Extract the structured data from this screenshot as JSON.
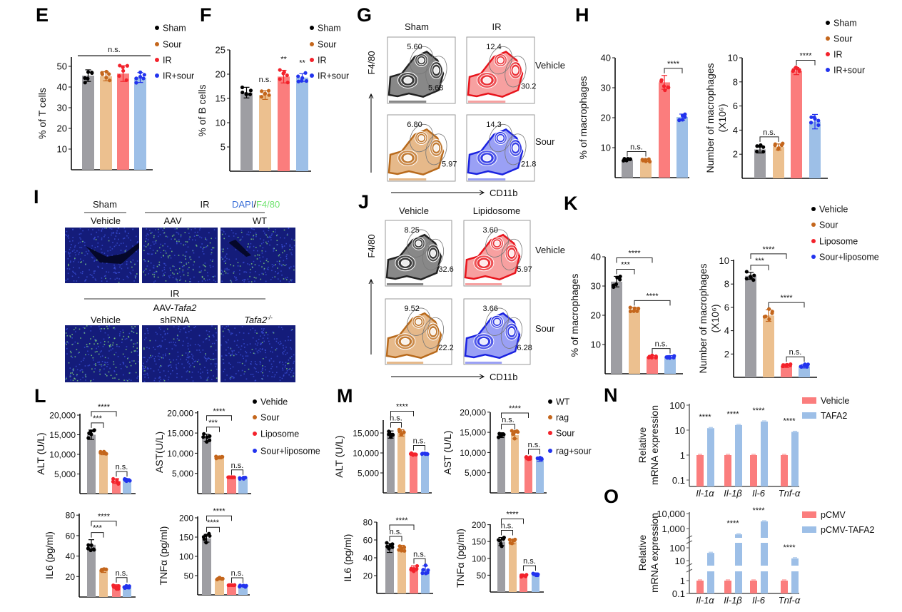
{
  "panel_letters": {
    "E": "E",
    "F": "F",
    "G": "G",
    "H": "H",
    "I": "I",
    "J": "J",
    "K": "K",
    "L": "L",
    "M": "M",
    "N": "N",
    "O": "O"
  },
  "palette": {
    "bar_fills": [
      "#9e9ea3",
      "#ecc08f",
      "#fb7d7d",
      "#9dbfe7"
    ],
    "dot_colors": [
      "#000000",
      "#c4661c",
      "#f3222b",
      "#2233ee"
    ],
    "pair_fills": [
      "#fb7d7d",
      "#9dbfe7"
    ]
  },
  "legends": {
    "E": [
      "Sham",
      "Sour",
      "IR",
      "IR+sour"
    ],
    "F": [
      "Sham",
      "Sour",
      "IR",
      "IR+sour"
    ],
    "H": [
      "Sham",
      "Sour",
      "IR",
      "IR+sour"
    ],
    "K": [
      "Vehicle",
      "Sour",
      "Liposome",
      "Sour+liposome"
    ],
    "L": [
      "Vehide",
      "Sour",
      "Liposome",
      "Sour+liposome"
    ],
    "M": [
      "WT",
      "rag",
      "Sour",
      "rag+sour"
    ],
    "N": [
      "Vehicle",
      " TAFA2"
    ],
    "O": [
      "pCMV",
      "pCMV-TAFA2"
    ]
  },
  "flow": {
    "G": {
      "columns": [
        "Sham",
        "IR"
      ],
      "rows": [
        "Vehicle",
        "Sour"
      ],
      "gates": [
        [
          "5.60",
          "5.68"
        ],
        [
          "12.4",
          "30.2"
        ],
        [
          "6.80",
          "5.97"
        ],
        [
          "14.3",
          "21.8"
        ]
      ],
      "y_axis": "F4/80",
      "x_axis": "CD11b"
    },
    "J": {
      "columns": [
        "Vehicle",
        "Lipidosome"
      ],
      "rows": [
        "Vehicle",
        "Sour"
      ],
      "gates": [
        [
          "8.25",
          "32.6"
        ],
        [
          "3.60",
          "5.97"
        ],
        [
          "9.52",
          "22.2"
        ],
        [
          "3.66",
          "6.28"
        ]
      ],
      "y_axis": "F4/80",
      "x_axis": "CD11b"
    }
  },
  "imaging": {
    "top": {
      "group1": "Sham",
      "group2": "IR",
      "stain_a": "DAPI",
      "stain_sep": "/",
      "stain_b": "F4/80",
      "labels": [
        "Vehicle",
        "AAV",
        "WT"
      ]
    },
    "bottom": {
      "group": "IR",
      "sub_prefix": "AAV-",
      "sub_gene": "Tafa2",
      "labels": [
        "Vehicle",
        "shRNA",
        "Tafa2"
      ],
      "ko_sup": "-/-"
    }
  },
  "chart_data": [
    {
      "id": "E",
      "type": "bar",
      "ylabel": "% of T cells",
      "ylim": [
        0,
        55
      ],
      "yticks": [
        10,
        20,
        30,
        40,
        50
      ],
      "categories": [
        "Sham",
        "Sour",
        "IR",
        "IR+sour"
      ],
      "values": [
        45.5,
        45.2,
        46.5,
        44.6
      ],
      "errors": [
        2.8,
        2.2,
        3.8,
        2.4
      ],
      "annotations": [
        {
          "type": "line",
          "from": 0,
          "to": 3,
          "label": "n.s."
        }
      ]
    },
    {
      "id": "F",
      "type": "bar",
      "ylabel": "% of B cells",
      "ylim": [
        0,
        25
      ],
      "yticks": [
        5,
        10,
        15,
        20,
        25
      ],
      "categories": [
        "Sham",
        "Sour",
        "IR",
        "IR+sour"
      ],
      "values": [
        16.2,
        15.7,
        19.5,
        19.3
      ],
      "errors": [
        1.1,
        0.9,
        1.3,
        0.8
      ],
      "annotations": [
        {
          "from": 1,
          "to": 1,
          "label": "n.s."
        },
        {
          "from": 2,
          "to": 2,
          "label": "**"
        },
        {
          "from": 3,
          "to": 3,
          "label": "**"
        }
      ]
    },
    {
      "id": "H1",
      "type": "bar",
      "ylabel": "% of macrophages",
      "ylim": [
        0,
        40
      ],
      "yticks": [
        10,
        20,
        30,
        40
      ],
      "categories": [
        "Sham",
        "Sour",
        "IR",
        "IR+sour"
      ],
      "values": [
        6.0,
        5.8,
        31.8,
        20.2
      ],
      "errors": [
        0.3,
        0.4,
        2.3,
        1.0
      ],
      "annotations": [
        {
          "from": 0,
          "to": 1,
          "label": "n.s."
        },
        {
          "from": 2,
          "to": 3,
          "label": "****"
        }
      ]
    },
    {
      "id": "H2",
      "type": "bar",
      "ylabel": "Number of macrophages",
      "ylabel2": "(X10⁶)",
      "ylim": [
        0,
        10
      ],
      "yticks": [
        2,
        4,
        6,
        8,
        10
      ],
      "categories": [
        "Sham",
        "Sour",
        "IR",
        "IR+sour"
      ],
      "values": [
        2.4,
        2.6,
        8.9,
        4.7
      ],
      "errors": [
        0.3,
        0.25,
        0.3,
        0.6
      ],
      "annotations": [
        {
          "from": 0,
          "to": 1,
          "label": "n.s."
        },
        {
          "from": 2,
          "to": 3,
          "label": "****"
        }
      ]
    },
    {
      "id": "K1",
      "type": "bar",
      "ylabel": "% of macrophages",
      "ylim": [
        0,
        40
      ],
      "yticks": [
        10,
        20,
        30,
        40
      ],
      "categories": [
        "Vehicle",
        "Sour",
        "Liposome",
        "Sour+liposome"
      ],
      "values": [
        31.5,
        22.0,
        5.8,
        5.8
      ],
      "errors": [
        1.8,
        0.6,
        0.4,
        0.4
      ],
      "annotations": [
        {
          "from": 2,
          "to": 3,
          "label": "n.s."
        },
        {
          "from": 1,
          "to": 3,
          "label": "****"
        },
        {
          "from": 0,
          "to": 1,
          "label": "***"
        },
        {
          "from": 0,
          "to": 2,
          "label": "****"
        }
      ]
    },
    {
      "id": "K2",
      "type": "bar",
      "ylabel": "Number of macrophages",
      "ylabel2": "(X10⁶)",
      "ylim": [
        0,
        10
      ],
      "yticks": [
        2,
        4,
        6,
        8,
        10
      ],
      "categories": [
        "Vehicle",
        "Sour",
        "Liposome",
        "Sour+liposome"
      ],
      "values": [
        8.7,
        5.3,
        1.0,
        0.95
      ],
      "errors": [
        0.3,
        0.5,
        0.15,
        0.15
      ],
      "annotations": [
        {
          "from": 2,
          "to": 3,
          "label": "n.s."
        },
        {
          "from": 1,
          "to": 3,
          "label": "****"
        },
        {
          "from": 0,
          "to": 1,
          "label": "***"
        },
        {
          "from": 0,
          "to": 2,
          "label": "****"
        }
      ]
    },
    {
      "id": "L_ALT",
      "type": "bar",
      "ylabel": "ALT (U/L)",
      "ylim": [
        0,
        20000
      ],
      "yticks": [
        5000,
        10000,
        15000,
        20000
      ],
      "categories": [
        "Vehide",
        "Sour",
        "Liposome",
        "Sour+liposome"
      ],
      "values": [
        15000,
        10300,
        3200,
        3400
      ],
      "errors": [
        1200,
        400,
        600,
        300
      ],
      "annotations": [
        {
          "from": 2,
          "to": 3,
          "label": "n.s."
        },
        {
          "from": 0,
          "to": 1,
          "label": "***"
        },
        {
          "from": 0,
          "to": 2,
          "label": "****"
        }
      ]
    },
    {
      "id": "L_AST",
      "type": "bar",
      "ylabel": "AST(U/L)",
      "ylim": [
        0,
        20000
      ],
      "yticks": [
        5000,
        10000,
        15000,
        20000
      ],
      "categories": [
        "Vehide",
        "Sour",
        "Liposome",
        "Sour+liposome"
      ],
      "values": [
        13800,
        8900,
        3900,
        3800
      ],
      "errors": [
        900,
        300,
        200,
        150
      ],
      "annotations": [
        {
          "from": 2,
          "to": 3,
          "label": "n.s."
        },
        {
          "from": 0,
          "to": 1,
          "label": "***"
        },
        {
          "from": 0,
          "to": 2,
          "label": "****"
        }
      ]
    },
    {
      "id": "L_IL6",
      "type": "bar",
      "ylabel": "IL6 (pg/ml)",
      "ylim": [
        0,
        80
      ],
      "yticks": [
        20,
        40,
        60,
        80
      ],
      "categories": [
        "Vehide",
        "Sour",
        "Liposome",
        "Sour+liposome"
      ],
      "values": [
        51,
        26,
        10,
        10
      ],
      "errors": [
        5,
        2,
        2,
        1
      ],
      "annotations": [
        {
          "from": 2,
          "to": 3,
          "label": "n.s."
        },
        {
          "from": 0,
          "to": 1,
          "label": "***"
        },
        {
          "from": 0,
          "to": 2,
          "label": "****"
        }
      ]
    },
    {
      "id": "L_TNF",
      "type": "bar",
      "ylabel": "TNFα (pg/ml)",
      "ylim": [
        0,
        200
      ],
      "yticks": [
        50,
        100,
        150,
        200
      ],
      "categories": [
        "Vehide",
        "Sour",
        "Liposome",
        "Sour+liposome"
      ],
      "values": [
        147,
        42,
        24,
        23
      ],
      "errors": [
        10,
        3,
        2,
        2
      ],
      "annotations": [
        {
          "from": 2,
          "to": 3,
          "label": "n.s."
        },
        {
          "from": 0,
          "to": 1,
          "label": "****"
        },
        {
          "from": 0,
          "to": 2,
          "label": "****"
        }
      ]
    },
    {
      "id": "M_ALT",
      "type": "bar",
      "ylabel": "ALT (U/L)",
      "ylim": [
        0,
        18000
      ],
      "yticks": [
        5000,
        10000,
        15000
      ],
      "categories": [
        "WT",
        "rag",
        "Sour",
        "rag+sour"
      ],
      "values": [
        14600,
        15000,
        9700,
        9900
      ],
      "errors": [
        900,
        800,
        300,
        200
      ],
      "annotations": [
        {
          "from": 2,
          "to": 3,
          "label": "n.s."
        },
        {
          "from": 0,
          "to": 1,
          "label": "n.s."
        },
        {
          "from": 0,
          "to": 2,
          "label": "****"
        }
      ]
    },
    {
      "id": "M_AST",
      "type": "bar",
      "ylabel": "AST (U/L)",
      "ylim": [
        0,
        20000
      ],
      "yticks": [
        5000,
        10000,
        15000,
        20000
      ],
      "categories": [
        "WT",
        "rag",
        "Sour",
        "rag+sour"
      ],
      "values": [
        14300,
        14300,
        8600,
        8300
      ],
      "errors": [
        600,
        900,
        400,
        500
      ],
      "annotations": [
        {
          "from": 2,
          "to": 3,
          "label": "n.s."
        },
        {
          "from": 0,
          "to": 1,
          "label": "n.s."
        },
        {
          "from": 0,
          "to": 2,
          "label": "****"
        }
      ]
    },
    {
      "id": "M_IL6",
      "type": "bar",
      "ylabel": "IL6 (pg/ml)",
      "ylim": [
        0,
        80
      ],
      "yticks": [
        20,
        40,
        60,
        80
      ],
      "categories": [
        "WT",
        "rag",
        "Sour",
        "rag+sour"
      ],
      "values": [
        51,
        51,
        28,
        27
      ],
      "errors": [
        5,
        3,
        3,
        4
      ],
      "annotations": [
        {
          "from": 2,
          "to": 3,
          "label": "n.s."
        },
        {
          "from": 0,
          "to": 1,
          "label": "n.s."
        },
        {
          "from": 0,
          "to": 2,
          "label": "****"
        }
      ]
    },
    {
      "id": "M_TNF",
      "type": "bar",
      "ylabel": "TNFα (pg/ml)",
      "ylim": [
        0,
        200
      ],
      "yticks": [
        50,
        100,
        150,
        200
      ],
      "categories": [
        "WT",
        "rag",
        "Sour",
        "rag+sour"
      ],
      "values": [
        150,
        149,
        48,
        53
      ],
      "errors": [
        12,
        6,
        3,
        4
      ],
      "annotations": [
        {
          "from": 2,
          "to": 3,
          "label": "n.s."
        },
        {
          "from": 0,
          "to": 1,
          "label": "n.s."
        },
        {
          "from": 0,
          "to": 2,
          "label": "****"
        }
      ]
    },
    {
      "id": "N",
      "type": "bar",
      "scale": "log",
      "ylabel": "Relative",
      "ylabel2": "mRNA expression",
      "ylim": [
        0.1,
        100
      ],
      "yticks": [
        0.1,
        1,
        10,
        100
      ],
      "ytick_labels": [
        "0.1",
        "1",
        "10",
        "100"
      ],
      "categories": [
        "Il-1α",
        "Il-1β",
        "Il-6",
        "Tnf-α"
      ],
      "series": [
        {
          "name": "Vehicle",
          "values": [
            1,
            1,
            1,
            1
          ]
        },
        {
          "name": "TAFA2",
          "values": [
            12,
            16,
            22,
            8.5
          ]
        }
      ],
      "annotations": [
        "****",
        "****",
        "****",
        "****"
      ]
    },
    {
      "id": "O",
      "type": "bar",
      "scale": "log",
      "axis_breaks": true,
      "ylabel": "Relative",
      "ylabel2": "mRNA expression",
      "ylim": [
        0.1,
        10000
      ],
      "yticks": [
        0.1,
        1,
        10,
        100,
        1000,
        10000
      ],
      "ytick_labels": [
        "0.1",
        "1",
        "10",
        "100",
        "1,000",
        "10,000"
      ],
      "categories": [
        "Il-1α",
        "Il-1β",
        "Il-6",
        "Tnf-α"
      ],
      "series": [
        {
          "name": "pCMV",
          "values": [
            1,
            1,
            1,
            1
          ]
        },
        {
          "name": "pCMV-TAFA2",
          "values": [
            40,
            500,
            3000,
            15
          ]
        }
      ],
      "annotations": [
        "****",
        "****",
        "****",
        "****"
      ]
    }
  ]
}
